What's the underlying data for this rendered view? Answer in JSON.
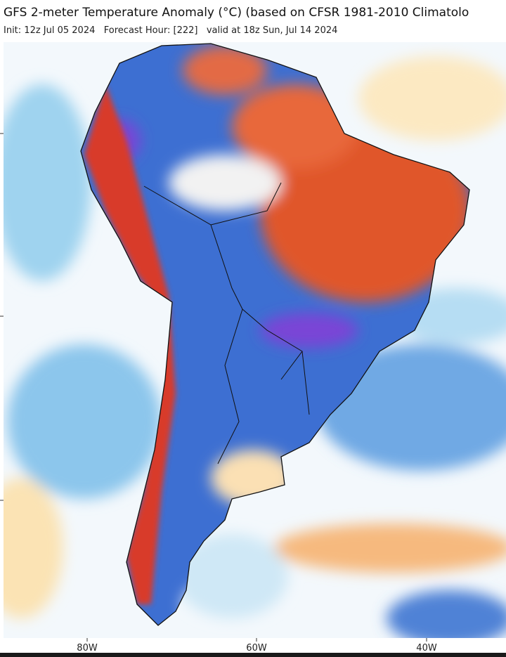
{
  "header": {
    "title": "GFS 2-meter Temperature Anomaly (°C) (based on CFSR 1981-2010 Climatolo",
    "subtitle": "Init: 12z Jul 05 2024   Forecast Hour: [222]   valid at 18z Sun, Jul 14 2024"
  },
  "map": {
    "lon_labels": [
      "80W",
      "60W",
      "40W"
    ]
  }
}
